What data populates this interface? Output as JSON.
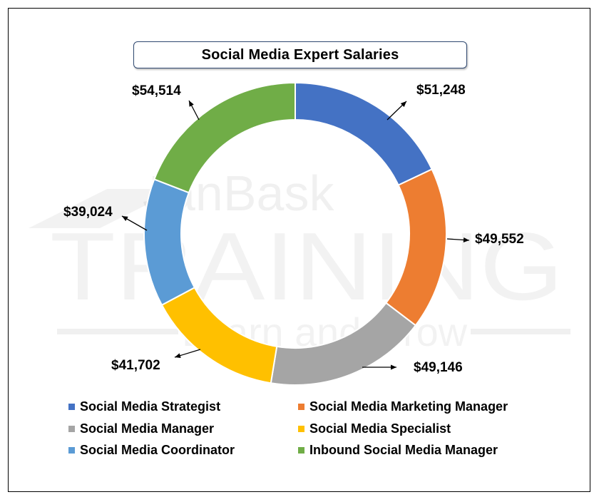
{
  "chart_data": {
    "type": "pie",
    "variant": "donut",
    "title": "Social Media Expert Salaries",
    "categories": [
      "Social Media Strategist",
      "Social Media Marketing Manager",
      "Social Media Manager",
      "Social Media Specialist",
      "Social Media Coordinator",
      "Inbound Social Media Manager"
    ],
    "values": [
      51248,
      49552,
      49146,
      41702,
      39024,
      54514
    ],
    "value_labels": [
      "$51,248",
      "$49,552",
      "$49,146",
      "$41,702",
      "$39,024",
      "$54,514"
    ],
    "colors": [
      "#4472c4",
      "#ed7d31",
      "#a5a5a5",
      "#ffc000",
      "#5b9bd5",
      "#70ad47"
    ],
    "legend_position": "bottom",
    "start_angle": "12 o'clock, clockwise"
  },
  "watermark": {
    "line1": "JanBask",
    "line2": "TRAINING",
    "line3": "Learn and Grow"
  }
}
